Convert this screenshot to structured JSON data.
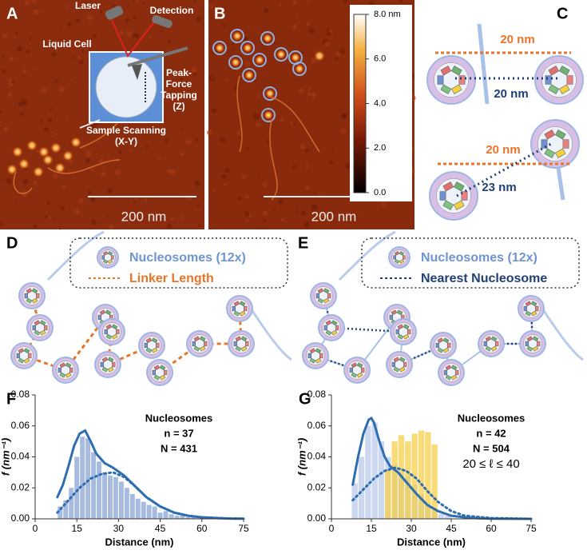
{
  "panel_labels": [
    "A",
    "B",
    "C",
    "D",
    "E",
    "F",
    "G"
  ],
  "panel_a": {
    "laser": "Laser",
    "detection": "Detection",
    "liquid_cell": "Liquid Cell",
    "peak_force": [
      "Peak-",
      "Force",
      "Tapping",
      "(Z)"
    ],
    "sample_scanning": [
      "Sample Scanning",
      "(X-Y)"
    ],
    "scale_bar": "200 nm"
  },
  "panel_b": {
    "colorbar": {
      "lim": [
        0,
        8
      ],
      "ticks": [
        {
          "value": 8,
          "label": "8.0 nm"
        },
        {
          "value": 6,
          "label": "6.0"
        },
        {
          "value": 4,
          "label": "4.0"
        },
        {
          "value": 2,
          "label": "2.0"
        },
        {
          "value": 0,
          "label": "0.0"
        }
      ]
    },
    "scale_bar": "200 nm"
  },
  "panel_c": {
    "top": {
      "linker": "20 nm",
      "nearest": "20 nm"
    },
    "bottom": {
      "linker": "20 nm",
      "nearest": "23 nm"
    }
  },
  "panel_d": {
    "legend": [
      "Nucleosomes (12x)",
      "Linker Length"
    ]
  },
  "panel_e": {
    "legend": [
      "Nucleosomes (12x)",
      "Nearest Nucleosome"
    ]
  },
  "chart_data": [
    {
      "type": "histogram",
      "xlabel": "Distance (nm)",
      "ylabel": "f (nm⁻¹)",
      "annotations": [
        "Nucleosomes",
        "n = 37",
        "N = 431"
      ],
      "xlim": [
        0,
        75
      ],
      "xticks": [
        0,
        15,
        30,
        45,
        60,
        75
      ],
      "ylim": [
        0,
        0.08
      ],
      "yticks": [
        {
          "value": 0,
          "label": "0.00"
        },
        {
          "value": 0.02,
          "label": "0.02"
        },
        {
          "value": 0.04,
          "label": "0.04"
        },
        {
          "value": 0.06,
          "label": "0.06"
        },
        {
          "value": 0.08,
          "label": "0.08"
        }
      ],
      "series": [
        {
          "color": "#9db3dc",
          "bins": [
            8,
            10,
            12,
            14,
            16,
            18,
            20,
            22,
            24,
            26,
            28,
            30,
            32,
            34,
            36,
            38,
            40,
            42,
            44,
            46,
            48,
            50,
            52,
            54,
            56,
            58,
            60
          ],
          "values": [
            0.008,
            0.012,
            0.02,
            0.04,
            0.053,
            0.052,
            0.043,
            0.037,
            0.03,
            0.028,
            0.027,
            0.024,
            0.02,
            0.016,
            0.013,
            0.011,
            0.009,
            0.008,
            0.004,
            0.005,
            0.003,
            0.002,
            0.002,
            0.001,
            0.001,
            0.001
          ]
        }
      ],
      "lines": [
        {
          "color": "#2e6db0",
          "style": "solid",
          "x": [
            8,
            10,
            12,
            14,
            16,
            18,
            20,
            22,
            25,
            28,
            32,
            36,
            40,
            45,
            50,
            55,
            60,
            65,
            70,
            75
          ],
          "values": [
            0.014,
            0.022,
            0.034,
            0.047,
            0.055,
            0.057,
            0.05,
            0.042,
            0.036,
            0.033,
            0.028,
            0.021,
            0.014,
            0.008,
            0.004,
            0.002,
            0.001,
            0.0005,
            0.0002,
            0.0001
          ]
        },
        {
          "color": "#2e6db0",
          "style": "dotted",
          "x": [
            8,
            12,
            16,
            20,
            24,
            28,
            32,
            36,
            40,
            45,
            50,
            55,
            60,
            70,
            75
          ],
          "values": [
            0.004,
            0.012,
            0.02,
            0.026,
            0.029,
            0.03,
            0.027,
            0.021,
            0.014,
            0.008,
            0.004,
            0.002,
            0.001,
            0.0002,
            0.0001
          ]
        }
      ]
    },
    {
      "type": "histogram",
      "xlabel": "Distance (nm)",
      "ylabel": "f (nm⁻¹)",
      "annotations": [
        "Nucleosomes",
        "n = 42",
        "N = 504",
        "20 ≤ ℓ ≤ 40"
      ],
      "xlim": [
        0,
        75
      ],
      "xticks": [
        0,
        15,
        30,
        45,
        60,
        75
      ],
      "ylim": [
        0,
        0.08
      ],
      "yticks": [
        {
          "value": 0,
          "label": "0.00"
        },
        {
          "value": 0.02,
          "label": "0.02"
        },
        {
          "value": 0.04,
          "label": "0.04"
        },
        {
          "value": 0.06,
          "label": "0.06"
        },
        {
          "value": 0.08,
          "label": "0.08"
        }
      ],
      "series": [
        {
          "color": "#c5d4ee",
          "bins": [
            7.5,
            10,
            12.5,
            15,
            17.5,
            20,
            22.5,
            25,
            27.5,
            30,
            32.5,
            35,
            37.5,
            40,
            42.5,
            45
          ],
          "values": [
            0.023,
            0.04,
            0.06,
            0.062,
            0.05,
            0.04,
            0.035,
            0.03,
            0.028,
            0.022,
            0.016,
            0.01,
            0.006,
            0.003,
            0.002
          ]
        },
        {
          "color": "#f7cf4a",
          "bins": [
            20,
            22.5,
            25,
            27.5,
            30,
            32.5,
            35,
            37.5,
            40
          ],
          "values": [
            0.032,
            0.05,
            0.054,
            0.05,
            0.055,
            0.057,
            0.056,
            0.048
          ]
        }
      ],
      "lines": [
        {
          "color": "#2e6db0",
          "style": "solid",
          "x": [
            8,
            10,
            12,
            14,
            15,
            16,
            18,
            20,
            22,
            25,
            28,
            32,
            36,
            40,
            45,
            50,
            55,
            60,
            75
          ],
          "values": [
            0.022,
            0.04,
            0.055,
            0.064,
            0.065,
            0.062,
            0.05,
            0.04,
            0.034,
            0.03,
            0.024,
            0.016,
            0.009,
            0.005,
            0.002,
            0.001,
            0.0004,
            0.0001,
            0
          ]
        },
        {
          "color": "#2e6db0",
          "style": "dotted",
          "x": [
            8,
            12,
            16,
            20,
            24,
            28,
            32,
            36,
            40,
            45,
            50,
            60,
            75
          ],
          "values": [
            0.012,
            0.019,
            0.026,
            0.031,
            0.033,
            0.031,
            0.026,
            0.018,
            0.011,
            0.005,
            0.002,
            0.0005,
            0
          ]
        }
      ]
    }
  ]
}
